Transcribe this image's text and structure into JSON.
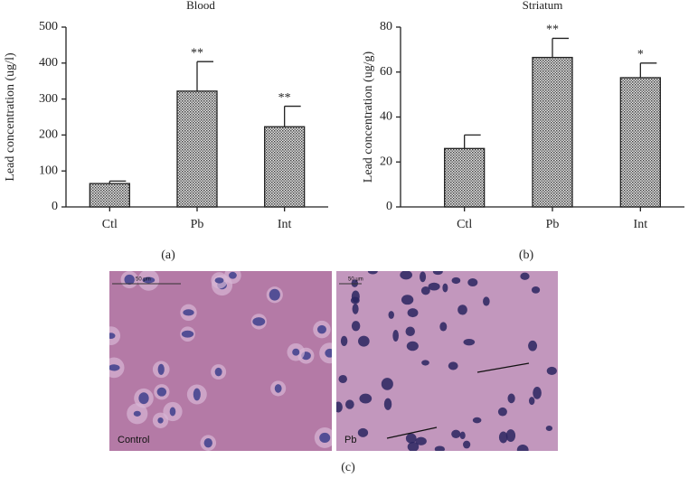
{
  "chart_data": [
    {
      "type": "bar",
      "title": "Blood",
      "y_label": "Lead concentration (ug/l)",
      "panel_label": "(a)",
      "categories": [
        "Ctl",
        "Pb",
        "Int"
      ],
      "values": [
        65,
        322,
        223
      ],
      "errors": [
        7,
        82,
        57
      ],
      "annotations": [
        null,
        "**",
        "**"
      ],
      "color": "#8a8a8a",
      "ylim": [
        0,
        500
      ],
      "yticks": [
        0,
        100,
        200,
        300,
        400,
        500
      ]
    },
    {
      "type": "bar",
      "title": "Striatum",
      "y_label": "Lead concentration (ug/g)",
      "panel_label": "(b)",
      "categories": [
        "Ctl",
        "Pb",
        "Int"
      ],
      "values": [
        26,
        66.5,
        57.5
      ],
      "errors": [
        6,
        8.5,
        6.5
      ],
      "annotations": [
        null,
        "**",
        "*"
      ],
      "color": "#8a8a8a",
      "ylim": [
        0,
        80
      ],
      "yticks": [
        0,
        20,
        40,
        60,
        80
      ]
    }
  ],
  "micrographs": {
    "panel_label": "(c)",
    "scale_bar": "50 μm",
    "images": [
      {
        "label": "Control"
      },
      {
        "label": "Pb"
      }
    ]
  }
}
